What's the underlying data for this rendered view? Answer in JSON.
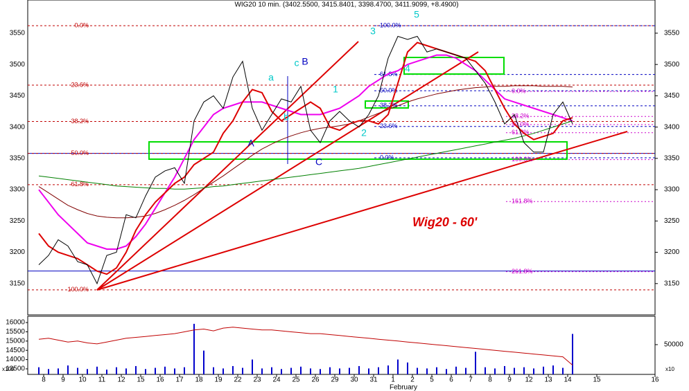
{
  "chart_data": [
    {
      "type": "line",
      "title": "WIG20 10 min. (3402.5500, 3415.8401, 3398.4700, 3411.9099, +8.4900)",
      "annotation": "Wig20 - 60'",
      "x_group_label": "February",
      "categories": [
        "8",
        null,
        "9",
        null,
        "10",
        null,
        "11",
        null,
        "12",
        null,
        "15",
        null,
        "16",
        null,
        "17",
        null,
        "18",
        null,
        "19",
        null,
        "22",
        null,
        "23",
        null,
        "24",
        null,
        "25",
        null,
        "26",
        null,
        "29",
        null,
        "30",
        null,
        "31",
        null,
        "1",
        null,
        "2",
        null,
        "5",
        null,
        "6",
        null,
        "7",
        null,
        "8",
        null,
        "9",
        null,
        "12",
        null,
        "13",
        null,
        "14",
        null,
        null,
        "15",
        null,
        null,
        null,
        null,
        null,
        "16"
      ],
      "series": [
        {
          "color": "#000000",
          "values": [
            3180,
            3195,
            3220,
            3210,
            3185,
            3180,
            3150,
            3195,
            3200,
            3260,
            3255,
            3290,
            3320,
            3330,
            3335,
            3310,
            3410,
            3440,
            3450,
            3430,
            3480,
            3505,
            3430,
            3395,
            3420,
            3445,
            3440,
            3465,
            3395,
            3375,
            3410,
            3425,
            3410,
            3400,
            3420,
            3450,
            3510,
            3545,
            3540,
            3545,
            3520,
            3525,
            3520,
            3515,
            3510,
            3490,
            3470,
            3440,
            3405,
            3420,
            3375,
            3360,
            3360,
            3420,
            3440,
            3405,
            null,
            null,
            null,
            null,
            null,
            null,
            null,
            null
          ]
        },
        {
          "color": "#dd0000",
          "values": [
            3230,
            3210,
            3200,
            3195,
            3190,
            3180,
            3170,
            3165,
            3175,
            3200,
            3235,
            3260,
            3280,
            3295,
            3310,
            3320,
            3340,
            3350,
            3360,
            3390,
            3410,
            3440,
            3460,
            3455,
            3425,
            3410,
            3420,
            3430,
            3440,
            3430,
            3400,
            3395,
            3405,
            3410,
            3410,
            3405,
            3420,
            3470,
            3520,
            3535,
            3530,
            3525,
            3520,
            3515,
            3510,
            3505,
            3490,
            3460,
            3430,
            3405,
            3390,
            3380,
            3385,
            3390,
            3410,
            3415,
            null,
            null,
            null,
            null,
            null,
            null,
            null,
            null
          ]
        },
        {
          "color": "#ee00ee",
          "values": [
            3300,
            3280,
            3260,
            3245,
            3230,
            3215,
            3210,
            3205,
            3205,
            3210,
            3225,
            3245,
            3270,
            3295,
            3320,
            3350,
            3380,
            3400,
            3420,
            3430,
            3435,
            3440,
            3440,
            3440,
            3435,
            3430,
            3425,
            3420,
            3420,
            3420,
            3425,
            3430,
            3440,
            3450,
            3465,
            3475,
            3485,
            3490,
            3500,
            3505,
            3510,
            3515,
            3515,
            3510,
            3500,
            3490,
            3475,
            3460,
            3445,
            3440,
            3435,
            3430,
            3425,
            3420,
            3415,
            3410,
            null,
            null,
            null,
            null,
            null,
            null,
            null,
            null
          ]
        },
        {
          "color": "#008000",
          "values": [
            3322,
            3320,
            3318,
            3316,
            3314,
            3312,
            3310,
            3308,
            3306,
            3305,
            3304,
            3303,
            3302,
            3302,
            3301,
            3301,
            3302,
            3303,
            3305,
            3306,
            3308,
            3310,
            3312,
            3314,
            3316,
            3318,
            3320,
            3322,
            3324,
            3326,
            3328,
            3330,
            3332,
            3334,
            3337,
            3340,
            3343,
            3346,
            3349,
            3352,
            3355,
            3358,
            3361,
            3364,
            3367,
            3370,
            3373,
            3376,
            3379,
            3382,
            3386,
            3390,
            3395,
            3400,
            3405,
            3410,
            null,
            null,
            null,
            null,
            null,
            null,
            null,
            null
          ]
        },
        {
          "color": "#800000",
          "values": [
            3305,
            3295,
            3285,
            3275,
            3268,
            3262,
            3258,
            3256,
            3255,
            3255,
            3256,
            3258,
            3262,
            3268,
            3275,
            3283,
            3292,
            3302,
            3312,
            3322,
            3333,
            3344,
            3355,
            3365,
            3373,
            3380,
            3386,
            3391,
            3395,
            3398,
            3400,
            3402,
            3405,
            3410,
            3416,
            3422,
            3428,
            3434,
            3440,
            3445,
            3449,
            3453,
            3456,
            3459,
            3461,
            3463,
            3464,
            3465,
            3465,
            3466,
            3466,
            3466,
            3465,
            3465,
            3465,
            3464,
            null,
            null,
            null,
            null,
            null,
            null,
            null,
            null
          ]
        }
      ],
      "ylim": [
        3100,
        3603
      ],
      "yticks": [
        3150,
        3200,
        3250,
        3300,
        3350,
        3400,
        3450,
        3500,
        3550
      ],
      "hlines": [
        {
          "color": "#0000c0",
          "value": 3358
        },
        {
          "color": "#0000c0",
          "value": 3170
        }
      ],
      "fib_sets": [
        {
          "color": "#c00000",
          "levels": [
            {
              "label": "0.0%",
              "value": 3562
            },
            {
              "label": "23.6%",
              "value": 3467
            },
            {
              "label": "38.2%",
              "value": 3409
            },
            {
              "label": "50.0%",
              "value": 3358
            },
            {
              "label": "61.8%",
              "value": 3308
            },
            {
              "label": "100.0%",
              "value": 3140
            }
          ]
        },
        {
          "color": "#0000c0",
          "levels": [
            {
              "label": "100.0%",
              "value": 3562
            },
            {
              "label": "61.8%",
              "value": 3484
            },
            {
              "label": "50.0%",
              "value": 3458
            },
            {
              "label": "38.2%",
              "value": 3434
            },
            {
              "label": "23.6%",
              "value": 3401
            },
            {
              "label": "0.0%",
              "value": 3351
            }
          ]
        },
        {
          "color": "#cc00cc",
          "levels": [
            {
              "label": "0.0%",
              "value": 3457
            },
            {
              "label": "38.2%",
              "value": 3417
            },
            {
              "label": "50.0%",
              "value": 3404
            },
            {
              "label": "61.8%",
              "value": 3391
            },
            {
              "label": "100.0%",
              "value": 3348
            },
            {
              "label": "161.8%",
              "value": 3281
            },
            {
              "label": "261.8%",
              "value": 3169
            }
          ]
        }
      ],
      "wave_labels": [
        "1",
        "2",
        "3",
        "4",
        "5",
        "a",
        "b",
        "c",
        "A",
        "B",
        "C"
      ]
    },
    {
      "type": "bar",
      "corner_labels": [
        "x100",
        "x10"
      ],
      "ylim": [
        13200,
        16340
      ],
      "yticks": [
        13500,
        14000,
        14500,
        15000,
        15500,
        16000
      ],
      "y2lim": [
        0,
        97700
      ],
      "y2ticks": [
        50000
      ],
      "series": [
        {
          "color": "#0000cc",
          "axis": "y2",
          "values": [
            12000,
            9000,
            10000,
            15000,
            11000,
            9000,
            13000,
            8000,
            12000,
            10000,
            14000,
            9000,
            11000,
            13000,
            10000,
            12000,
            85000,
            40000,
            12000,
            10000,
            14000,
            11000,
            25000,
            10000,
            12000,
            9000,
            11000,
            13000,
            10000,
            9000,
            12000,
            10000,
            11000,
            14000,
            10000,
            12000,
            15000,
            25000,
            20000,
            11000,
            10000,
            12000,
            9000,
            13000,
            11000,
            38000,
            12000,
            10000,
            14000,
            11000,
            12000,
            10000,
            13000,
            15000,
            11000,
            68000,
            null,
            null,
            null,
            null,
            null,
            null,
            null,
            null
          ]
        },
        {
          "color": "#c00000",
          "values": [
            15100,
            15150,
            15050,
            14950,
            15000,
            14900,
            14850,
            14950,
            15050,
            15150,
            15200,
            15250,
            15300,
            15350,
            15400,
            15500,
            15600,
            15650,
            15550,
            15700,
            15750,
            15700,
            15650,
            15600,
            15600,
            15550,
            15500,
            15450,
            15400,
            15400,
            15350,
            15300,
            15250,
            15200,
            15150,
            15100,
            15050,
            15000,
            14950,
            14900,
            14850,
            14800,
            14750,
            14700,
            14650,
            14600,
            14550,
            14500,
            14450,
            14400,
            14350,
            14300,
            14250,
            14200,
            14150,
            13700,
            null,
            null,
            null,
            null,
            null,
            null,
            null,
            null
          ]
        }
      ]
    }
  ]
}
